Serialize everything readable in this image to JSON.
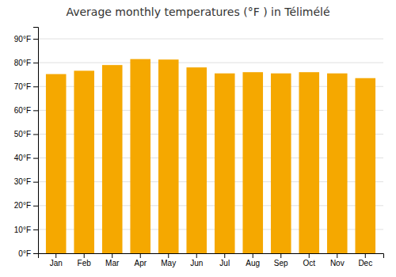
{
  "chart_data": {
    "type": "bar",
    "title": "Average monthly temperatures (°F ) in Télimélé",
    "categories": [
      "Jan",
      "Feb",
      "Mar",
      "Apr",
      "May",
      "Jun",
      "Jul",
      "Aug",
      "Sep",
      "Oct",
      "Nov",
      "Dec"
    ],
    "values": [
      75.2,
      76.6,
      79.0,
      81.5,
      81.3,
      78.0,
      75.5,
      76.0,
      75.5,
      76.0,
      75.5,
      73.5
    ],
    "color": "#F5A800",
    "ylim": [
      0,
      95
    ],
    "yticks": [
      {
        "value": 0,
        "label": "0°F"
      },
      {
        "value": 10,
        "label": "10°F"
      },
      {
        "value": 20,
        "label": "20°F"
      },
      {
        "value": 30,
        "label": "30°F"
      },
      {
        "value": 40,
        "label": "40°F"
      },
      {
        "value": 50,
        "label": "50°F"
      },
      {
        "value": 60,
        "label": "60°F"
      },
      {
        "value": 70,
        "label": "70°F"
      },
      {
        "value": 80,
        "label": "80°F"
      },
      {
        "value": 90,
        "label": "90°F"
      }
    ],
    "grid": true
  }
}
